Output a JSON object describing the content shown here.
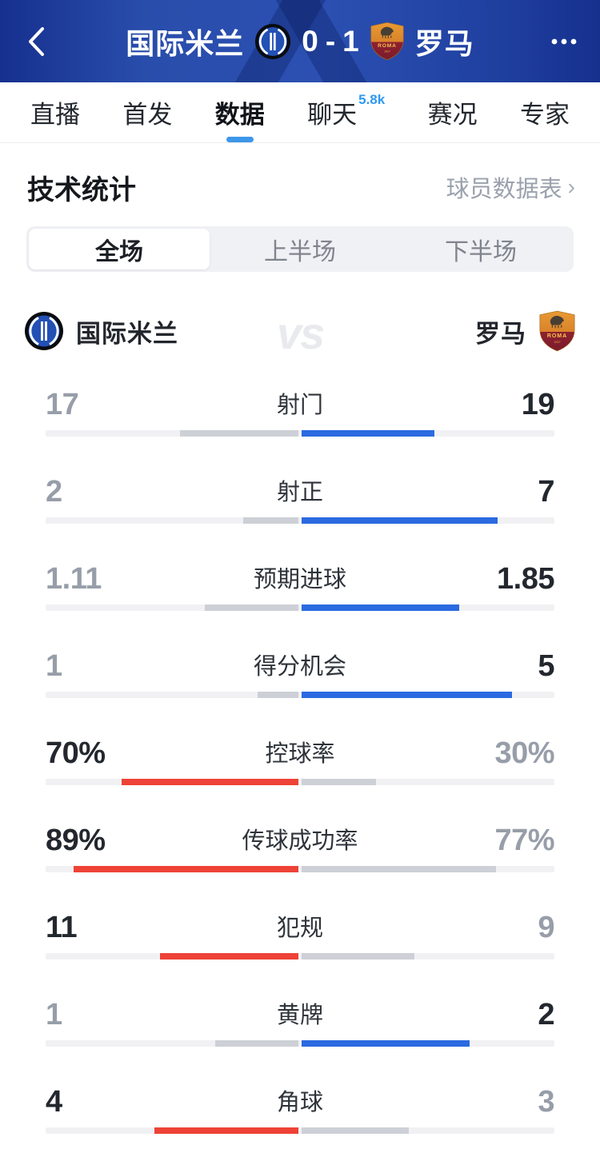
{
  "header": {
    "home_team": "国际米兰",
    "home_score": "0",
    "score_sep": "-",
    "away_score": "1",
    "away_team": "罗马",
    "back_icon": "chevron-left",
    "more_icon": "ellipsis"
  },
  "nav": {
    "tabs": [
      "直播",
      "首发",
      "数据",
      "聊天",
      "赛况",
      "专家"
    ],
    "active_tab": "数据",
    "chat_badge": "5.8k"
  },
  "section": {
    "title": "技术统计",
    "link": "球员数据表",
    "chevron": "›"
  },
  "period_tabs": {
    "options": [
      "全场",
      "上半场",
      "下半场"
    ],
    "active": "全场"
  },
  "teams": {
    "home": "国际米兰",
    "away": "罗马",
    "vs": "vs",
    "away_crest": {
      "roma_text": "ROMA",
      "year_text": "1927"
    }
  },
  "colors": {
    "home_bar": "#ee4237",
    "away_bar": "#2b6ae0",
    "lose_bar": "#cdd0d6",
    "track": "#f1f1f4",
    "tab_underline": "#3c97ea",
    "chat_badge": "#2f9af0",
    "header_blue": "#2a4dab"
  },
  "stats": [
    {
      "label": "射门",
      "home": "17",
      "away": "19",
      "home_pct": 47.2,
      "away_pct": 52.8,
      "winner": "away"
    },
    {
      "label": "射正",
      "home": "2",
      "away": "7",
      "home_pct": 22.2,
      "away_pct": 77.8,
      "winner": "away"
    },
    {
      "label": "预期进球",
      "home": "1.11",
      "away": "1.85",
      "home_pct": 37.5,
      "away_pct": 62.5,
      "winner": "away"
    },
    {
      "label": "得分机会",
      "home": "1",
      "away": "5",
      "home_pct": 16.7,
      "away_pct": 83.3,
      "winner": "away"
    },
    {
      "label": "控球率",
      "home": "70%",
      "away": "30%",
      "home_pct": 70,
      "away_pct": 30,
      "winner": "home"
    },
    {
      "label": "传球成功率",
      "home": "89%",
      "away": "77%",
      "home_pct": 89,
      "away_pct": 77,
      "winner": "home"
    },
    {
      "label": "犯规",
      "home": "11",
      "away": "9",
      "home_pct": 55,
      "away_pct": 45,
      "winner": "home"
    },
    {
      "label": "黄牌",
      "home": "1",
      "away": "2",
      "home_pct": 33.3,
      "away_pct": 66.7,
      "winner": "away"
    },
    {
      "label": "角球",
      "home": "4",
      "away": "3",
      "home_pct": 57.1,
      "away_pct": 42.9,
      "winner": "home"
    }
  ],
  "chart_data": {
    "type": "bar",
    "title": "技术统计",
    "categories": [
      "射门",
      "射正",
      "预期进球",
      "得分机会",
      "控球率",
      "传球成功率",
      "犯规",
      "黄牌",
      "角球"
    ],
    "series": [
      {
        "name": "国际米兰",
        "values": [
          17,
          2,
          1.11,
          1,
          70,
          89,
          11,
          1,
          4
        ]
      },
      {
        "name": "罗马",
        "values": [
          19,
          7,
          1.85,
          5,
          30,
          77,
          9,
          2,
          3
        ]
      }
    ],
    "note": "控球率 and 传球成功率 values are percentages; bars grow outward from center, winner colored (home red / away blue), loser gray"
  }
}
